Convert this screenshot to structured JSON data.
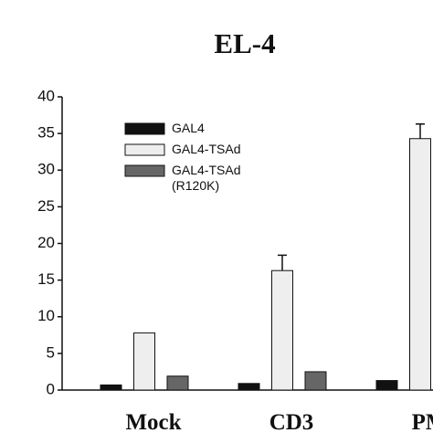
{
  "chart_data": {
    "type": "bar",
    "title": "EL-4",
    "categories": [
      "Mock",
      "CD3",
      "PM"
    ],
    "series": [
      {
        "name": "GAL4",
        "color": "#111111",
        "values": [
          0.7,
          0.9,
          1.3
        ]
      },
      {
        "name": "GAL4-TSAd",
        "color": "#eeeeee",
        "values": [
          7.8,
          16.3,
          34.3
        ],
        "errors": [
          null,
          2.1,
          2.0
        ]
      },
      {
        "name": "GAL4-TSAd\n(R120K)",
        "color": "#666666",
        "values": [
          1.9,
          2.5,
          null
        ]
      }
    ],
    "ylim": [
      0,
      40
    ],
    "yticks": [
      0,
      5,
      10,
      15,
      20,
      25,
      30,
      35,
      40
    ],
    "grid": false
  }
}
